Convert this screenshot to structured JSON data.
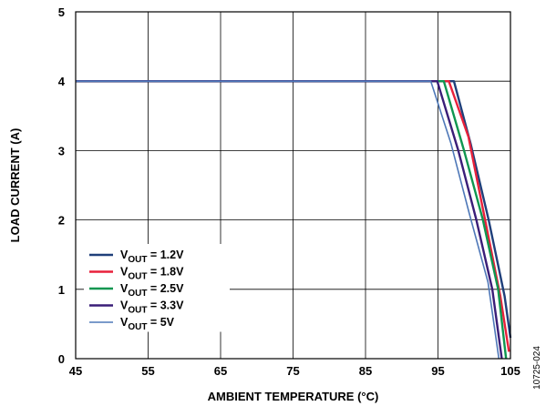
{
  "chart_data": {
    "type": "line",
    "title": "",
    "xlabel": "AMBIENT TEMPERATURE (°C)",
    "ylabel": "LOAD CURRENT (A)",
    "xlim": [
      45,
      105
    ],
    "ylim": [
      0,
      5
    ],
    "xticks": [
      45,
      55,
      65,
      75,
      85,
      95,
      105
    ],
    "yticks": [
      0,
      1,
      2,
      3,
      4,
      5
    ],
    "grid": true,
    "legend_position": "bottom-left",
    "figure_id": "10725-024",
    "series": [
      {
        "name": "V_OUT = 1.2V",
        "legend": {
          "prefix": "V",
          "sub": "OUT",
          "suffix": " = 1.2V"
        },
        "color": "#1f3f7a",
        "x": [
          45,
          97.2,
          99.5,
          102.0,
          104.2,
          105.0
        ],
        "y": [
          4,
          4,
          3.1,
          2.0,
          0.9,
          0.3
        ]
      },
      {
        "name": "V_OUT = 1.8V",
        "legend": {
          "prefix": "V",
          "sub": "OUT",
          "suffix": " = 1.8V"
        },
        "color": "#e8213b",
        "x": [
          45,
          96.5,
          99.2,
          101.5,
          103.6,
          104.8
        ],
        "y": [
          4,
          4,
          3.2,
          2.0,
          0.9,
          0.1
        ]
      },
      {
        "name": "V_OUT = 2.5V",
        "legend": {
          "prefix": "V",
          "sub": "OUT",
          "suffix": " = 2.5V"
        },
        "color": "#0f9650",
        "x": [
          45,
          95.8,
          98.6,
          101.2,
          103.3,
          104.4
        ],
        "y": [
          4,
          4,
          3.0,
          2.0,
          1.0,
          0.0
        ]
      },
      {
        "name": "V_OUT = 3.3V",
        "legend": {
          "prefix": "V",
          "sub": "OUT",
          "suffix": " = 3.3V"
        },
        "color": "#3a1e78",
        "x": [
          45,
          94.9,
          97.8,
          100.3,
          102.5,
          103.8
        ],
        "y": [
          4,
          4,
          3.0,
          2.0,
          1.0,
          0.0
        ]
      },
      {
        "name": "V_OUT = 5V",
        "legend": {
          "prefix": "V",
          "sub": "OUT",
          "suffix": " = 5V"
        },
        "color": "#4e78b8",
        "x": [
          45,
          94.0,
          96.8,
          99.3,
          101.9,
          103.4
        ],
        "y": [
          4,
          4,
          3.1,
          2.1,
          1.1,
          0.0
        ]
      }
    ]
  }
}
